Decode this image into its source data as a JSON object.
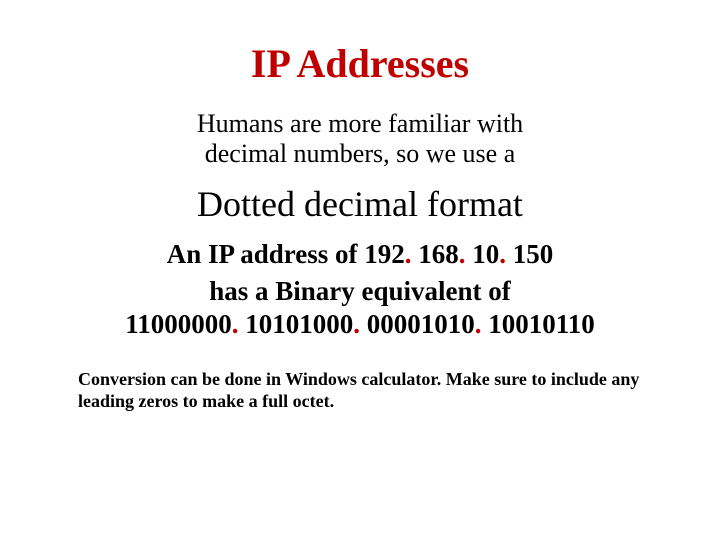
{
  "colors": {
    "accent": "#c00000",
    "text": "#000000",
    "background": "#ffffff"
  },
  "title": "IP Addresses",
  "intro_line1": "Humans are more familiar with",
  "intro_line2": "decimal numbers, so we use a",
  "subhead": "Dotted decimal format",
  "ip_prefix": "An IP address of ",
  "ip_octets": [
    "192",
    "168",
    "10",
    "150"
  ],
  "ip_separator_literal": ". ",
  "binary_intro": "has a Binary equivalent of",
  "binary_octets": [
    "11000000",
    "10101000",
    "00001010",
    "10010110"
  ],
  "binary_separator_literal": ". ",
  "footnote": "Conversion can be done in Windows calculator. Make sure to include any leading zeros to make a full octet."
}
